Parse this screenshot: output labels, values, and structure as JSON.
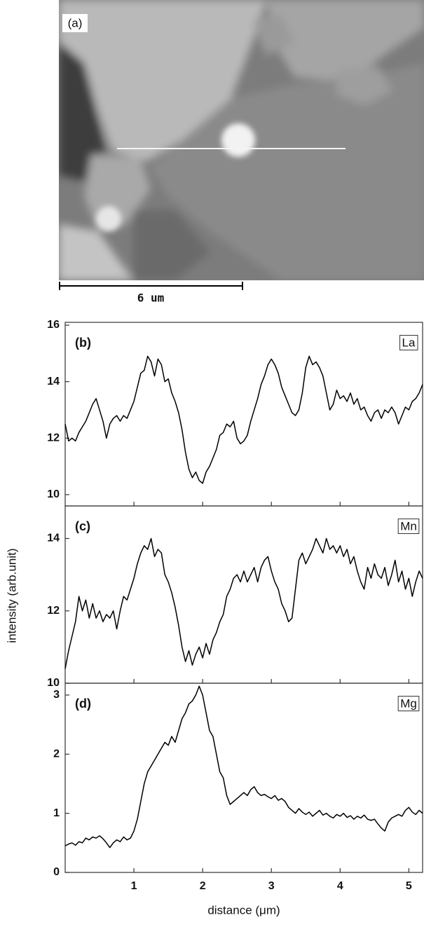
{
  "image": {
    "label": "(a)",
    "scale_bar": "6 um"
  },
  "ylabel": "intensity (arb.unit)",
  "xlabel": "distance (μm)",
  "chart_data": [
    {
      "type": "line",
      "panel_label": "(b)",
      "x": [
        0,
        0.05,
        0.1,
        0.15,
        0.2,
        0.25,
        0.3,
        0.35,
        0.4,
        0.45,
        0.5,
        0.55,
        0.6,
        0.65,
        0.7,
        0.75,
        0.8,
        0.85,
        0.9,
        0.95,
        1,
        1.05,
        1.1,
        1.15,
        1.2,
        1.25,
        1.3,
        1.35,
        1.4,
        1.45,
        1.5,
        1.55,
        1.6,
        1.65,
        1.7,
        1.75,
        1.8,
        1.85,
        1.9,
        1.95,
        2,
        2.05,
        2.1,
        2.15,
        2.2,
        2.25,
        2.3,
        2.35,
        2.4,
        2.45,
        2.5,
        2.55,
        2.6,
        2.65,
        2.7,
        2.75,
        2.8,
        2.85,
        2.9,
        2.95,
        3,
        3.05,
        3.1,
        3.15,
        3.2,
        3.25,
        3.3,
        3.35,
        3.4,
        3.45,
        3.5,
        3.55,
        3.6,
        3.65,
        3.7,
        3.75,
        3.8,
        3.85,
        3.9,
        3.95,
        4,
        4.05,
        4.1,
        4.15,
        4.2,
        4.25,
        4.3,
        4.35,
        4.4,
        4.45,
        4.5,
        4.55,
        4.6,
        4.65,
        4.7,
        4.75,
        4.8,
        4.85,
        4.9,
        4.95,
        5,
        5.05,
        5.1,
        5.15,
        5.2
      ],
      "series": [
        {
          "name": "La",
          "color": "#000000",
          "values": [
            12.5,
            11.9,
            12.0,
            11.9,
            12.2,
            12.4,
            12.6,
            12.9,
            13.2,
            13.4,
            13.0,
            12.6,
            12.0,
            12.5,
            12.7,
            12.8,
            12.6,
            12.8,
            12.7,
            13.0,
            13.3,
            13.8,
            14.3,
            14.4,
            14.9,
            14.7,
            14.2,
            14.8,
            14.6,
            14.0,
            14.1,
            13.6,
            13.3,
            12.9,
            12.3,
            11.5,
            10.9,
            10.6,
            10.8,
            10.5,
            10.4,
            10.8,
            11.0,
            11.3,
            11.6,
            12.1,
            12.2,
            12.5,
            12.4,
            12.6,
            12.0,
            11.8,
            11.9,
            12.1,
            12.6,
            13.0,
            13.4,
            13.9,
            14.2,
            14.6,
            14.8,
            14.6,
            14.3,
            13.8,
            13.5,
            13.2,
            12.9,
            12.8,
            13.0,
            13.6,
            14.5,
            14.9,
            14.6,
            14.7,
            14.5,
            14.2,
            13.6,
            13.0,
            13.2,
            13.7,
            13.4,
            13.5,
            13.3,
            13.6,
            13.2,
            13.4,
            13.0,
            13.1,
            12.8,
            12.6,
            12.9,
            13.0,
            12.7,
            13.0,
            12.9,
            13.1,
            12.9,
            12.5,
            12.8,
            13.1,
            13.0,
            13.3,
            13.4,
            13.6,
            13.9
          ]
        }
      ],
      "xlim": [
        0,
        5.2
      ],
      "xticks": [
        1,
        2,
        3,
        4,
        5
      ],
      "ylim": [
        9.6,
        16.1
      ],
      "yticks": [
        10,
        12,
        14,
        16
      ]
    },
    {
      "type": "line",
      "panel_label": "(c)",
      "x": [
        0,
        0.05,
        0.1,
        0.15,
        0.2,
        0.25,
        0.3,
        0.35,
        0.4,
        0.45,
        0.5,
        0.55,
        0.6,
        0.65,
        0.7,
        0.75,
        0.8,
        0.85,
        0.9,
        0.95,
        1,
        1.05,
        1.1,
        1.15,
        1.2,
        1.25,
        1.3,
        1.35,
        1.4,
        1.45,
        1.5,
        1.55,
        1.6,
        1.65,
        1.7,
        1.75,
        1.8,
        1.85,
        1.9,
        1.95,
        2,
        2.05,
        2.1,
        2.15,
        2.2,
        2.25,
        2.3,
        2.35,
        2.4,
        2.45,
        2.5,
        2.55,
        2.6,
        2.65,
        2.7,
        2.75,
        2.8,
        2.85,
        2.9,
        2.95,
        3,
        3.05,
        3.1,
        3.15,
        3.2,
        3.25,
        3.3,
        3.35,
        3.4,
        3.45,
        3.5,
        3.55,
        3.6,
        3.65,
        3.7,
        3.75,
        3.8,
        3.85,
        3.9,
        3.95,
        4,
        4.05,
        4.1,
        4.15,
        4.2,
        4.25,
        4.3,
        4.35,
        4.4,
        4.45,
        4.5,
        4.55,
        4.6,
        4.65,
        4.7,
        4.75,
        4.8,
        4.85,
        4.9,
        4.95,
        5,
        5.05,
        5.1,
        5.15,
        5.2
      ],
      "series": [
        {
          "name": "Mn",
          "color": "#000000",
          "values": [
            10.4,
            10.9,
            11.3,
            11.7,
            12.4,
            12.0,
            12.3,
            11.8,
            12.2,
            11.8,
            12.0,
            11.7,
            11.9,
            11.8,
            12.0,
            11.5,
            12.0,
            12.4,
            12.3,
            12.6,
            12.9,
            13.3,
            13.6,
            13.8,
            13.7,
            14.0,
            13.5,
            13.7,
            13.6,
            13.0,
            12.8,
            12.5,
            12.1,
            11.6,
            11.0,
            10.6,
            10.9,
            10.5,
            10.8,
            11.0,
            10.7,
            11.1,
            10.8,
            11.2,
            11.4,
            11.7,
            11.9,
            12.4,
            12.6,
            12.9,
            13.0,
            12.8,
            13.1,
            12.8,
            13.0,
            13.2,
            12.8,
            13.2,
            13.4,
            13.5,
            13.1,
            12.8,
            12.6,
            12.2,
            12.0,
            11.7,
            11.8,
            12.6,
            13.4,
            13.6,
            13.3,
            13.5,
            13.7,
            14.0,
            13.8,
            13.6,
            14.0,
            13.7,
            13.8,
            13.6,
            13.8,
            13.5,
            13.7,
            13.3,
            13.5,
            13.1,
            12.8,
            12.6,
            13.2,
            12.9,
            13.3,
            13.0,
            12.9,
            13.2,
            12.7,
            13.0,
            13.4,
            12.8,
            13.1,
            12.6,
            12.9,
            12.4,
            12.8,
            13.1,
            12.9
          ]
        }
      ],
      "xlim": [
        0,
        5.2
      ],
      "xticks": [
        1,
        2,
        3,
        4,
        5
      ],
      "ylim": [
        10,
        14.9
      ],
      "yticks": [
        10,
        12,
        14
      ]
    },
    {
      "type": "line",
      "panel_label": "(d)",
      "x": [
        0,
        0.05,
        0.1,
        0.15,
        0.2,
        0.25,
        0.3,
        0.35,
        0.4,
        0.45,
        0.5,
        0.55,
        0.6,
        0.65,
        0.7,
        0.75,
        0.8,
        0.85,
        0.9,
        0.95,
        1,
        1.05,
        1.1,
        1.15,
        1.2,
        1.25,
        1.3,
        1.35,
        1.4,
        1.45,
        1.5,
        1.55,
        1.6,
        1.65,
        1.7,
        1.75,
        1.8,
        1.85,
        1.9,
        1.95,
        2,
        2.05,
        2.1,
        2.15,
        2.2,
        2.25,
        2.3,
        2.35,
        2.4,
        2.45,
        2.5,
        2.55,
        2.6,
        2.65,
        2.7,
        2.75,
        2.8,
        2.85,
        2.9,
        2.95,
        3,
        3.05,
        3.1,
        3.15,
        3.2,
        3.25,
        3.3,
        3.35,
        3.4,
        3.45,
        3.5,
        3.55,
        3.6,
        3.65,
        3.7,
        3.75,
        3.8,
        3.85,
        3.9,
        3.95,
        4,
        4.05,
        4.1,
        4.15,
        4.2,
        4.25,
        4.3,
        4.35,
        4.4,
        4.45,
        4.5,
        4.55,
        4.6,
        4.65,
        4.7,
        4.75,
        4.8,
        4.85,
        4.9,
        4.95,
        5,
        5.05,
        5.1,
        5.15,
        5.2
      ],
      "series": [
        {
          "name": "Mg",
          "color": "#000000",
          "values": [
            0.45,
            0.48,
            0.5,
            0.46,
            0.52,
            0.5,
            0.58,
            0.55,
            0.6,
            0.58,
            0.62,
            0.57,
            0.5,
            0.42,
            0.5,
            0.55,
            0.52,
            0.6,
            0.55,
            0.58,
            0.7,
            0.9,
            1.2,
            1.5,
            1.7,
            1.8,
            1.9,
            2.0,
            2.1,
            2.2,
            2.15,
            2.3,
            2.2,
            2.4,
            2.6,
            2.7,
            2.85,
            2.9,
            3.0,
            3.15,
            3.0,
            2.7,
            2.4,
            2.3,
            2.0,
            1.7,
            1.6,
            1.3,
            1.15,
            1.2,
            1.25,
            1.3,
            1.35,
            1.3,
            1.4,
            1.45,
            1.35,
            1.3,
            1.32,
            1.28,
            1.25,
            1.3,
            1.22,
            1.25,
            1.2,
            1.1,
            1.05,
            1.0,
            1.08,
            1.02,
            0.98,
            1.02,
            0.95,
            1.0,
            1.05,
            0.97,
            1.0,
            0.95,
            0.92,
            0.98,
            0.95,
            1.0,
            0.93,
            0.96,
            0.9,
            0.95,
            0.92,
            0.97,
            0.9,
            0.88,
            0.9,
            0.82,
            0.75,
            0.7,
            0.85,
            0.92,
            0.95,
            0.98,
            0.95,
            1.05,
            1.1,
            1.02,
            0.98,
            1.05,
            1.0
          ]
        }
      ],
      "xlim": [
        0,
        5.2
      ],
      "xticks": [
        1,
        2,
        3,
        4,
        5
      ],
      "ylim": [
        0,
        3.2
      ],
      "yticks": [
        0,
        1,
        2,
        3
      ]
    }
  ]
}
